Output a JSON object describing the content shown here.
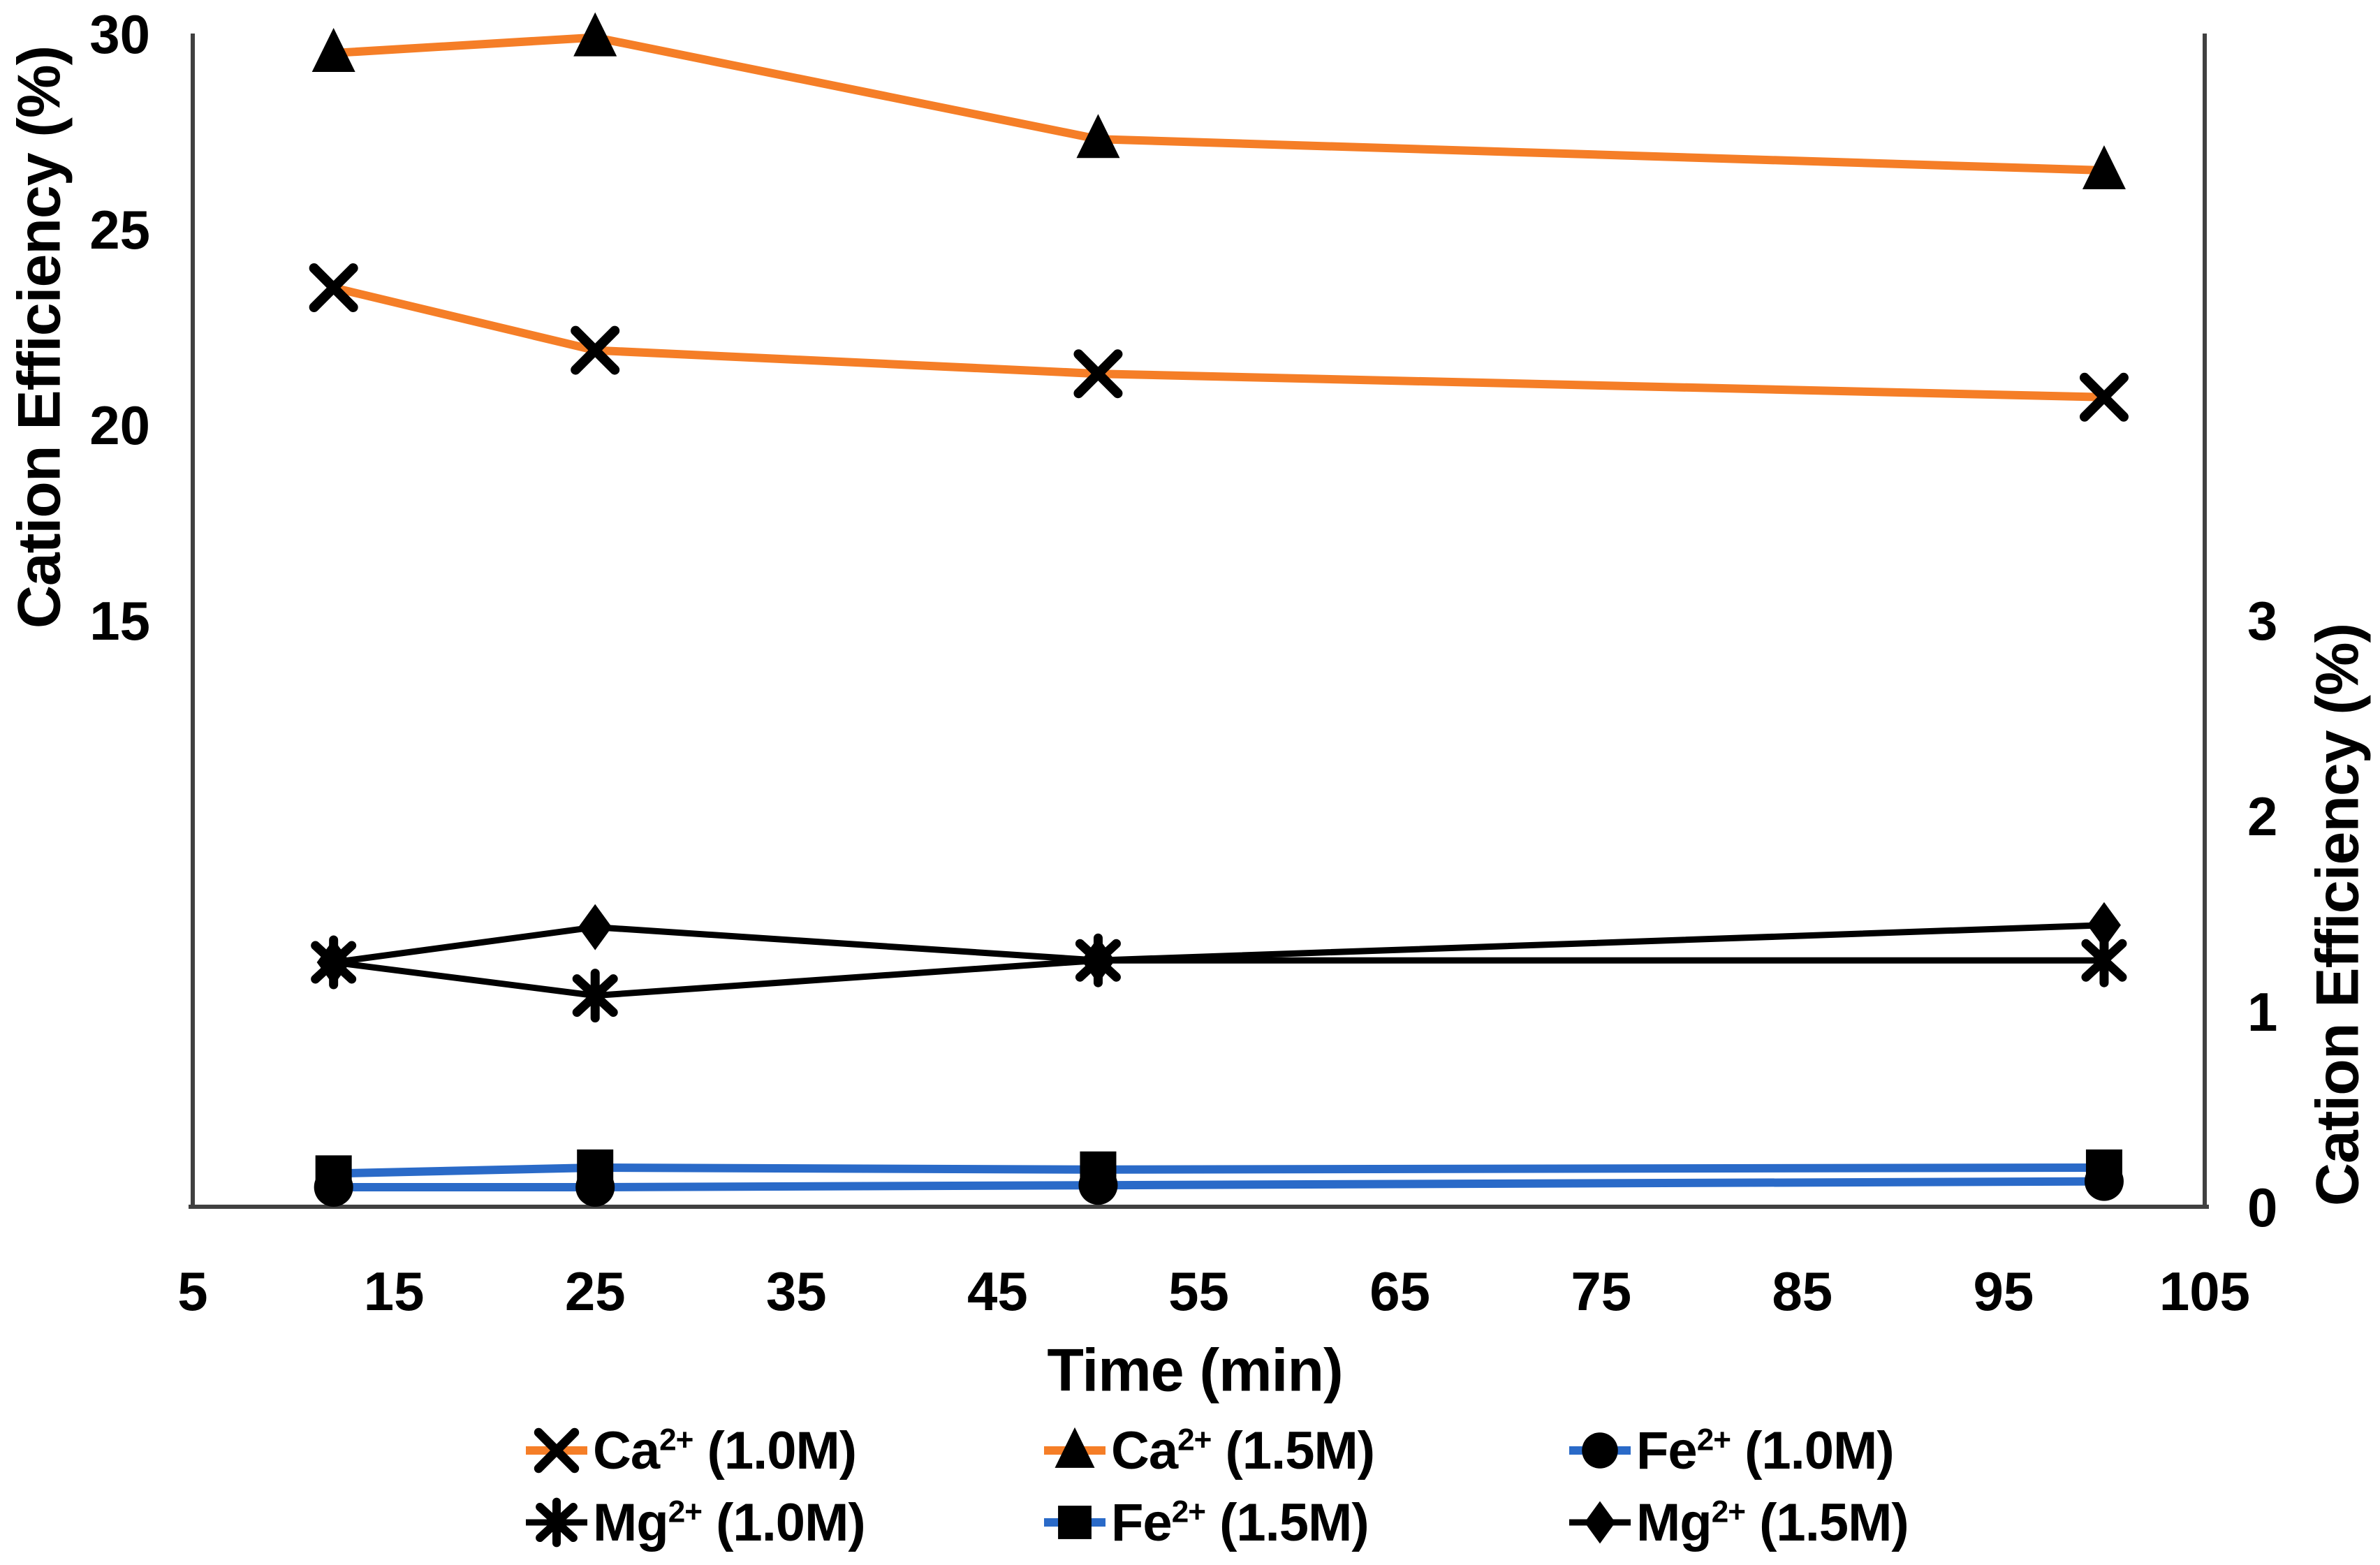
{
  "page": {
    "background": "#FFFFFF"
  },
  "titles": {
    "x_axis": "Time (min)",
    "y_axis_left": "Cation Efficiency (%)",
    "y_axis_right": "Cation Efficiency (%)"
  },
  "colors": {
    "orange": "#F57E27",
    "blue": "#2A6AC8",
    "black": "#000000",
    "axis_line": "#404040",
    "text": "#000000"
  },
  "chart_data": {
    "type": "line",
    "title": "",
    "xlabel": "Time (min)",
    "ylabel_left": "Cation Efficiency (%)",
    "ylabel_right": "Cation Efficiency (%)",
    "grid": false,
    "legend_position": "bottom",
    "x": [
      12,
      25,
      50,
      100
    ],
    "x_axis": {
      "min": 5,
      "max": 105,
      "ticks": [
        5,
        15,
        25,
        35,
        45,
        55,
        65,
        75,
        85,
        95,
        105
      ]
    },
    "y_axis_left": {
      "min": 0,
      "max": 30,
      "ticks": [
        30,
        25,
        20,
        15
      ]
    },
    "y_axis_right": {
      "min": 0,
      "max": 6,
      "ticks": [
        3,
        2,
        1,
        0
      ]
    },
    "series": [
      {
        "id": "ca10",
        "name": "Ca2+ (1.0M)",
        "label_ion": "Ca",
        "label_sup": "2+",
        "label_rest": " (1.0M)",
        "axis": "left",
        "line_color": "#F57E27",
        "line_width": 12,
        "marker": "x",
        "marker_color": "#000000",
        "values": [
          23.5,
          21.9,
          21.3,
          20.7
        ]
      },
      {
        "id": "ca15",
        "name": "Ca2+ (1.5M)",
        "label_ion": "Ca",
        "label_sup": "2+",
        "label_rest": " (1.5M)",
        "axis": "left",
        "line_color": "#F57E27",
        "line_width": 12,
        "marker": "triangle",
        "marker_color": "#000000",
        "values": [
          29.5,
          29.9,
          27.3,
          26.5
        ]
      },
      {
        "id": "fe10",
        "name": "Fe2+ (1.0M)",
        "label_ion": "Fe",
        "label_sup": "2+",
        "label_rest": " (1.0M)",
        "axis": "right",
        "line_color": "#2A6AC8",
        "line_width": 12,
        "marker": "circle",
        "marker_color": "#000000",
        "values": [
          0.1,
          0.1,
          0.11,
          0.13
        ]
      },
      {
        "id": "fe15",
        "name": "Fe2+ (1.5M)",
        "label_ion": "Fe",
        "label_sup": "2+",
        "label_rest": " (1.5M)",
        "axis": "right",
        "line_color": "#2A6AC8",
        "line_width": 12,
        "marker": "square",
        "marker_color": "#000000",
        "values": [
          0.17,
          0.2,
          0.19,
          0.2
        ]
      },
      {
        "id": "mg10",
        "name": "Mg2+ (1.0M)",
        "label_ion": "Mg",
        "label_sup": "2+",
        "label_rest": " (1.0M)",
        "axis": "right",
        "line_color": "#000000",
        "line_width": 9,
        "marker": "asterisk",
        "marker_color": "#000000",
        "values": [
          1.25,
          1.08,
          1.26,
          1.26
        ]
      },
      {
        "id": "mg15",
        "name": "Mg2+ (1.5M)",
        "label_ion": "Mg",
        "label_sup": "2+",
        "label_rest": " (1.5M)",
        "axis": "right",
        "line_color": "#000000",
        "line_width": 9,
        "marker": "diamond",
        "marker_color": "#000000",
        "values": [
          1.25,
          1.43,
          1.26,
          1.44
        ]
      }
    ],
    "legend_rows": [
      [
        0,
        1,
        2
      ],
      [
        4,
        3,
        5
      ]
    ],
    "draw_order": [
      2,
      3,
      5,
      4,
      0,
      1
    ]
  }
}
